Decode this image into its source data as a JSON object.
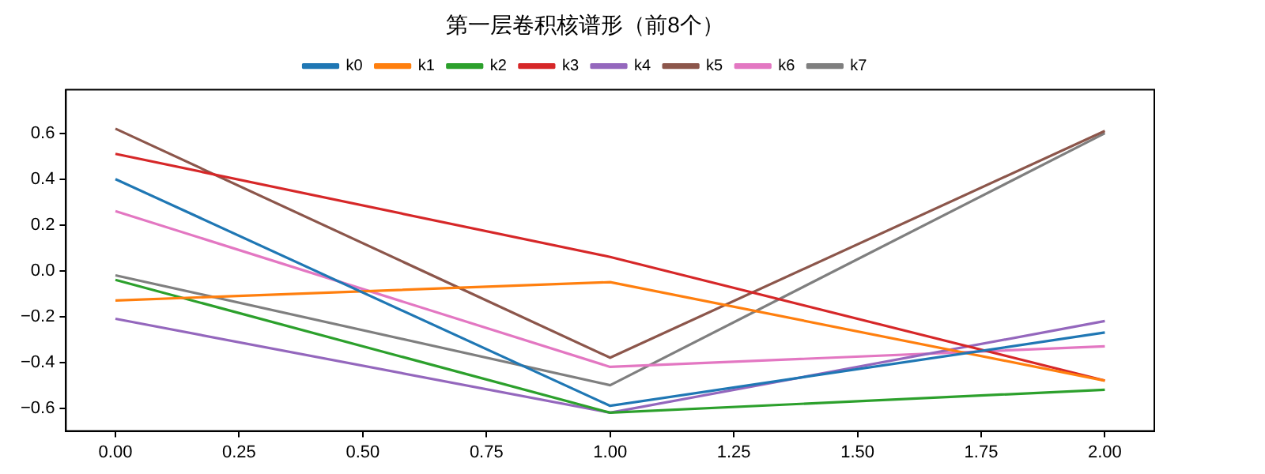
{
  "chart_data": {
    "type": "line",
    "title": "第一层卷积核谱形（前8个）",
    "x": [
      0,
      1,
      2
    ],
    "xlim": [
      -0.1,
      2.1
    ],
    "xticks": [
      {
        "value": 0,
        "label": "0.00"
      },
      {
        "value": 0.25,
        "label": "0.25"
      },
      {
        "value": 0.5,
        "label": "0.50"
      },
      {
        "value": 0.75,
        "label": "0.75"
      },
      {
        "value": 1,
        "label": "1.00"
      },
      {
        "value": 1.25,
        "label": "1.25"
      },
      {
        "value": 1.5,
        "label": "1.50"
      },
      {
        "value": 1.75,
        "label": "1.75"
      },
      {
        "value": 2,
        "label": "2.00"
      }
    ],
    "ylim": [
      -0.7,
      0.79
    ],
    "yticks": [
      {
        "value": -0.6,
        "label": "−0.6"
      },
      {
        "value": -0.4,
        "label": "−0.4"
      },
      {
        "value": -0.2,
        "label": "−0.2"
      },
      {
        "value": 0,
        "label": "0.0"
      },
      {
        "value": 0.2,
        "label": "0.2"
      },
      {
        "value": 0.4,
        "label": "0.4"
      },
      {
        "value": 0.6,
        "label": "0.6"
      }
    ],
    "grid": false,
    "legend": "top",
    "marker": "none",
    "line_style": "solid",
    "series": [
      {
        "name": "k0",
        "color": "#1f77b4",
        "values": [
          0.4,
          -0.59,
          -0.27
        ]
      },
      {
        "name": "k1",
        "color": "#ff7f0e",
        "values": [
          -0.13,
          -0.05,
          -0.48
        ]
      },
      {
        "name": "k2",
        "color": "#2ca02c",
        "values": [
          -0.04,
          -0.62,
          -0.52
        ]
      },
      {
        "name": "k3",
        "color": "#d62728",
        "values": [
          0.51,
          0.06,
          -0.48
        ]
      },
      {
        "name": "k4",
        "color": "#9467bd",
        "values": [
          -0.21,
          -0.62,
          -0.22
        ]
      },
      {
        "name": "k5",
        "color": "#8c564b",
        "values": [
          0.62,
          -0.38,
          0.61
        ]
      },
      {
        "name": "k6",
        "color": "#e377c2",
        "values": [
          0.26,
          -0.42,
          -0.33
        ]
      },
      {
        "name": "k7",
        "color": "#7f7f7f",
        "values": [
          -0.02,
          -0.5,
          0.6
        ]
      }
    ]
  }
}
